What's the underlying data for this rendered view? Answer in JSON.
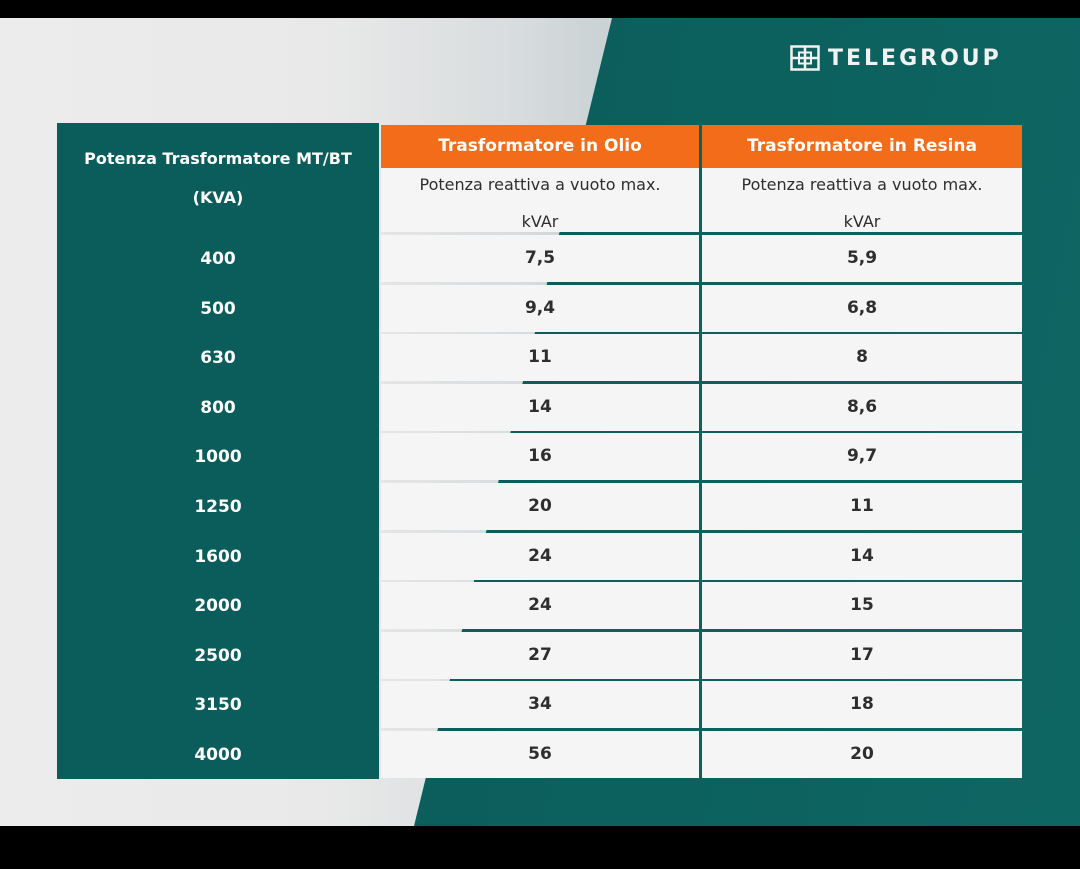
{
  "brand": {
    "logo_text": "TELEGROUP"
  },
  "table": {
    "row_header_title": "Potenza Trasformatore MT/BT",
    "row_header_unit": "(KVA)",
    "columns": [
      {
        "title": "Trasformatore in Olio",
        "subtitle": "Potenza reattiva a vuoto max.",
        "unit": "kVAr"
      },
      {
        "title": "Trasformatore in Resina",
        "subtitle": "Potenza reattiva a vuoto max.",
        "unit": "kVAr"
      }
    ],
    "rows": [
      {
        "kva": "400",
        "olio": "7,5",
        "resina": "5,9"
      },
      {
        "kva": "500",
        "olio": "9,4",
        "resina": "6,8"
      },
      {
        "kva": "630",
        "olio": "11",
        "resina": "8"
      },
      {
        "kva": "800",
        "olio": "14",
        "resina": "8,6"
      },
      {
        "kva": "1000",
        "olio": "16",
        "resina": "9,7"
      },
      {
        "kva": "1250",
        "olio": "20",
        "resina": "11"
      },
      {
        "kva": "1600",
        "olio": "24",
        "resina": "14"
      },
      {
        "kva": "2000",
        "olio": "24",
        "resina": "15"
      },
      {
        "kva": "2500",
        "olio": "27",
        "resina": "17"
      },
      {
        "kva": "3150",
        "olio": "34",
        "resina": "18"
      },
      {
        "kva": "4000",
        "olio": "56",
        "resina": "20"
      }
    ]
  },
  "colors": {
    "teal": "#0b5d5b",
    "orange": "#f26c1a",
    "cell_bg": "#f5f5f6"
  }
}
